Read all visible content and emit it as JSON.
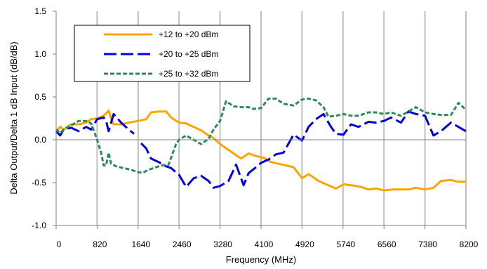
{
  "chart_data": {
    "type": "line",
    "xlabel": "Frequency (MHz)",
    "ylabel": "Delta Output/Delta 1 dB Input (dB/dB)",
    "xlim": [
      0,
      8200
    ],
    "ylim": [
      -1.0,
      1.5
    ],
    "xticks": [
      0,
      820,
      1640,
      2460,
      3280,
      4100,
      4920,
      5740,
      6560,
      7380,
      8200
    ],
    "xtick_labels": [
      "0",
      "820",
      "1640",
      "2460",
      "3280",
      "4100",
      "4920",
      "5740",
      "6560",
      "7380",
      "8200"
    ],
    "yticks": [
      -1.0,
      -0.5,
      0.0,
      0.5,
      1.0,
      1.5
    ],
    "ytick_labels": [
      "-1.0",
      "-0.5",
      "0.0",
      "0.5",
      "1.0",
      "1.5"
    ],
    "grid": "vertical",
    "legend_position": "top-left",
    "series": [
      {
        "name": "+12 to +20 dBm",
        "color": "#FFA500",
        "style": "solid",
        "x": [
          0,
          80,
          150,
          300,
          450,
          600,
          700,
          820,
          950,
          1050,
          1100,
          1150,
          1300,
          1450,
          1640,
          1720,
          1800,
          1900,
          2050,
          2200,
          2300,
          2460,
          2600,
          2750,
          2900,
          3050,
          3150,
          3280,
          3450,
          3550,
          3700,
          3850,
          4000,
          4150,
          4300,
          4450,
          4600,
          4750,
          4920,
          5050,
          5250,
          5400,
          5600,
          5750,
          5900,
          6100,
          6250,
          6400,
          6560,
          6750,
          6900,
          7050,
          7200,
          7380,
          7550,
          7700,
          7900,
          8050,
          8200
        ],
        "y": [
          0.1,
          0.15,
          0.12,
          0.18,
          0.18,
          0.2,
          0.24,
          0.25,
          0.28,
          0.34,
          0.25,
          0.18,
          0.18,
          0.2,
          0.22,
          0.23,
          0.24,
          0.32,
          0.33,
          0.33,
          0.26,
          0.2,
          0.19,
          0.15,
          0.11,
          0.05,
          0.02,
          -0.05,
          -0.12,
          -0.16,
          -0.22,
          -0.16,
          -0.19,
          -0.21,
          -0.26,
          -0.28,
          -0.3,
          -0.32,
          -0.45,
          -0.4,
          -0.48,
          -0.52,
          -0.57,
          -0.52,
          -0.53,
          -0.55,
          -0.58,
          -0.57,
          -0.59,
          -0.58,
          -0.58,
          -0.58,
          -0.56,
          -0.58,
          -0.56,
          -0.48,
          -0.47,
          -0.49,
          -0.49
        ]
      },
      {
        "name": "+20 to +25 dBm",
        "color": "#0000DD",
        "style": "dashed",
        "segments": [
          {
            "x": [
              0,
              80,
              150,
              300,
              450,
              600,
              700,
              820,
              950,
              1000,
              1050,
              1150,
              1300,
              1450,
              1560
            ],
            "y": [
              0.1,
              0.05,
              0.12,
              0.14,
              0.1,
              0.15,
              0.12,
              0.24,
              0.26,
              0.22,
              0.1,
              0.3,
              0.2,
              0.12,
              0.07
            ]
          },
          {
            "x": [
              1700,
              1800,
              1900,
              2050,
              2200,
              2300,
              2460,
              2600,
              2750,
              2900,
              3050,
              3150,
              3280,
              3450,
              3600,
              3750,
              3850,
              4000,
              4100,
              4250,
              4400,
              4550,
              4750,
              4920,
              5050,
              5200,
              5350,
              5500,
              5600,
              5750,
              5900,
              6050,
              6250,
              6400,
              6560,
              6700,
              6900,
              7050,
              7200,
              7380,
              7550,
              7700,
              7900,
              8050,
              8200
            ],
            "y": [
              -0.04,
              -0.1,
              -0.22,
              -0.26,
              -0.31,
              -0.33,
              -0.41,
              -0.55,
              -0.45,
              -0.42,
              -0.48,
              -0.56,
              -0.54,
              -0.48,
              -0.29,
              -0.53,
              -0.39,
              -0.32,
              -0.27,
              -0.23,
              -0.17,
              -0.15,
              0.06,
              -0.01,
              0.15,
              0.24,
              0.3,
              0.15,
              0.07,
              0.06,
              0.18,
              0.15,
              0.21,
              0.2,
              0.22,
              0.26,
              0.2,
              0.33,
              0.3,
              0.28,
              0.05,
              0.1,
              0.2,
              0.15,
              0.1
            ]
          }
        ]
      },
      {
        "name": "+25 to +32 dBm",
        "color": "#2E8B57",
        "style": "dotted",
        "x": [
          0,
          80,
          150,
          300,
          450,
          600,
          700,
          820,
          900,
          950,
          1000,
          1050,
          1100,
          1200,
          1350,
          1500,
          1640,
          1750,
          1850,
          1950,
          2100,
          2250,
          2400,
          2460,
          2600,
          2750,
          2900,
          3050,
          3150,
          3280,
          3400,
          3550,
          3700,
          3850,
          3950,
          4100,
          4250,
          4400,
          4550,
          4750,
          4920,
          5050,
          5200,
          5350,
          5450,
          5600,
          5750,
          5900,
          6050,
          6250,
          6400,
          6560,
          6700,
          6900,
          7050,
          7200,
          7380,
          7550,
          7700,
          7900,
          8050,
          8200
        ],
        "y": [
          0.12,
          0.08,
          0.12,
          0.17,
          0.22,
          0.22,
          0.19,
          0.0,
          -0.15,
          -0.3,
          -0.3,
          -0.15,
          -0.28,
          -0.31,
          -0.33,
          -0.35,
          -0.38,
          -0.38,
          -0.35,
          -0.33,
          -0.3,
          -0.29,
          -0.05,
          0.0,
          0.05,
          0.0,
          -0.05,
          0.01,
          0.12,
          0.22,
          0.45,
          0.39,
          0.38,
          0.38,
          0.36,
          0.37,
          0.48,
          0.48,
          0.42,
          0.4,
          0.47,
          0.48,
          0.46,
          0.38,
          0.27,
          0.28,
          0.3,
          0.28,
          0.28,
          0.32,
          0.32,
          0.3,
          0.32,
          0.28,
          0.33,
          0.38,
          0.32,
          0.3,
          0.29,
          0.29,
          0.43,
          0.35
        ]
      }
    ]
  }
}
